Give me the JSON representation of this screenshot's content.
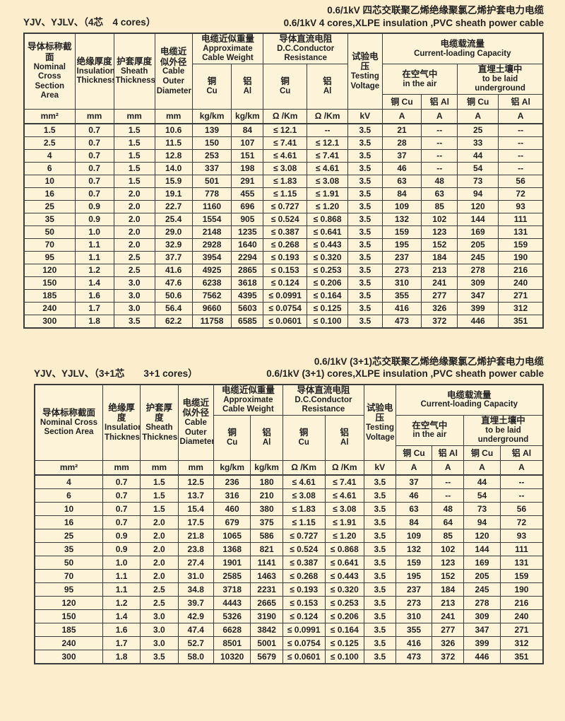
{
  "page": {
    "bg_color": "#fcedcd",
    "cell_bg": "#fdf3d9",
    "border_color": "#3b3b3b"
  },
  "header": {
    "section": {
      "cn": "导体标称截面",
      "en": "Nominal Cross Section Area",
      "unit": "mm²"
    },
    "insulation": {
      "cn": "绝缘厚度",
      "en": "Insulation Thickness",
      "unit": "mm"
    },
    "sheath": {
      "cn": "护套厚度",
      "en": "Sheath Thickness",
      "unit": "mm"
    },
    "diameter": {
      "cn": "电缆近似外径",
      "en": "Cable Outer Diameter",
      "unit": "mm"
    },
    "weight": {
      "cn": "电缆近似重量",
      "en": "Approximate Cable Weight",
      "cu_cn": "铜",
      "cu_en": "Cu",
      "al_cn": "铝",
      "al_en": "Al",
      "unit": "kg/km"
    },
    "resistance": {
      "cn": "导体直流电阻",
      "en": "D.C.Conductor Resistance",
      "cu_cn": "铜",
      "cu_en": "Cu",
      "al_cn": "铝",
      "al_en": "Al",
      "unit": "Ω /Km"
    },
    "testing": {
      "cn": "试验电压",
      "en": "Testing Voltage",
      "unit": "kV"
    },
    "capacity": {
      "cn": "电缆载流量",
      "en": "Current-loading Capacity",
      "air": {
        "cn": "在空气中",
        "en": "in the air"
      },
      "underground": {
        "cn": "直埋土壤中",
        "en": "to be laid underground"
      },
      "cu": "铜 Cu",
      "al": "铝 Al",
      "unit": "A"
    }
  },
  "tables": [
    {
      "title_cn": "0.6/1kV 四芯交联聚乙烯绝缘聚氯乙烯护套电力电缆",
      "title_en": "0.6/1kV 4 cores,XLPE insulation ,PVC sheath power cable",
      "model_label": "YJV、YJLV、（4芯　4 cores）",
      "rows": [
        [
          "1.5",
          "0.7",
          "1.5",
          "10.6",
          "139",
          "84",
          "≤ 12.1",
          "--",
          "3.5",
          "21",
          "--",
          "25",
          "--"
        ],
        [
          "2.5",
          "0.7",
          "1.5",
          "11.5",
          "150",
          "107",
          "≤ 7.41",
          "≤ 12.1",
          "3.5",
          "28",
          "--",
          "33",
          "--"
        ],
        [
          "4",
          "0.7",
          "1.5",
          "12.8",
          "253",
          "151",
          "≤ 4.61",
          "≤ 7.41",
          "3.5",
          "37",
          "--",
          "44",
          "--"
        ],
        [
          "6",
          "0.7",
          "1.5",
          "14.0",
          "337",
          "198",
          "≤ 3.08",
          "≤ 4.61",
          "3.5",
          "46",
          "--",
          "54",
          "--"
        ],
        [
          "10",
          "0.7",
          "1.5",
          "15.9",
          "501",
          "291",
          "≤ 1.83",
          "≤ 3.08",
          "3.5",
          "63",
          "48",
          "73",
          "56"
        ],
        [
          "16",
          "0.7",
          "2.0",
          "19.1",
          "778",
          "455",
          "≤ 1.15",
          "≤ 1.91",
          "3.5",
          "84",
          "63",
          "94",
          "72"
        ],
        [
          "25",
          "0.9",
          "2.0",
          "22.7",
          "1160",
          "696",
          "≤ 0.727",
          "≤ 1.20",
          "3.5",
          "109",
          "85",
          "120",
          "93"
        ],
        [
          "35",
          "0.9",
          "2.0",
          "25.4",
          "1554",
          "905",
          "≤ 0.524",
          "≤ 0.868",
          "3.5",
          "132",
          "102",
          "144",
          "111"
        ],
        [
          "50",
          "1.0",
          "2.0",
          "29.0",
          "2148",
          "1235",
          "≤ 0.387",
          "≤ 0.641",
          "3.5",
          "159",
          "123",
          "169",
          "131"
        ],
        [
          "70",
          "1.1",
          "2.0",
          "32.9",
          "2928",
          "1640",
          "≤ 0.268",
          "≤ 0.443",
          "3.5",
          "195",
          "152",
          "205",
          "159"
        ],
        [
          "95",
          "1.1",
          "2.5",
          "37.7",
          "3954",
          "2294",
          "≤ 0.193",
          "≤ 0.320",
          "3.5",
          "237",
          "184",
          "245",
          "190"
        ],
        [
          "120",
          "1.2",
          "2.5",
          "41.6",
          "4925",
          "2865",
          "≤ 0.153",
          "≤ 0.253",
          "3.5",
          "273",
          "213",
          "278",
          "216"
        ],
        [
          "150",
          "1.4",
          "3.0",
          "47.6",
          "6238",
          "3618",
          "≤ 0.124",
          "≤ 0.206",
          "3.5",
          "310",
          "241",
          "309",
          "240"
        ],
        [
          "185",
          "1.6",
          "3.0",
          "50.6",
          "7562",
          "4395",
          "≤ 0.0991",
          "≤ 0.164",
          "3.5",
          "355",
          "277",
          "347",
          "271"
        ],
        [
          "240",
          "1.7",
          "3.0",
          "56.4",
          "9660",
          "5603",
          "≤ 0.0754",
          "≤ 0.125",
          "3.5",
          "416",
          "326",
          "399",
          "312"
        ],
        [
          "300",
          "1.8",
          "3.5",
          "62.2",
          "11758",
          "6585",
          "≤ 0.0601",
          "≤ 0.100",
          "3.5",
          "473",
          "372",
          "446",
          "351"
        ]
      ]
    },
    {
      "title_cn": "0.6/1kV (3+1)芯交联聚乙烯绝缘聚氯乙烯护套电力电缆",
      "title_en": "0.6/1kV (3+1) cores,XLPE insulation ,PVC sheath power cable",
      "model_label": "YJV、YJLV、（3+1芯　　3+1 cores）",
      "rows": [
        [
          "4",
          "0.7",
          "1.5",
          "12.5",
          "236",
          "180",
          "≤ 4.61",
          "≤ 7.41",
          "3.5",
          "37",
          "--",
          "44",
          "--"
        ],
        [
          "6",
          "0.7",
          "1.5",
          "13.7",
          "316",
          "210",
          "≤ 3.08",
          "≤ 4.61",
          "3.5",
          "46",
          "--",
          "54",
          "--"
        ],
        [
          "10",
          "0.7",
          "1.5",
          "15.4",
          "460",
          "380",
          "≤ 1.83",
          "≤ 3.08",
          "3.5",
          "63",
          "48",
          "73",
          "56"
        ],
        [
          "16",
          "0.7",
          "2.0",
          "17.5",
          "679",
          "375",
          "≤ 1.15",
          "≤ 1.91",
          "3.5",
          "84",
          "64",
          "94",
          "72"
        ],
        [
          "25",
          "0.9",
          "2.0",
          "21.8",
          "1065",
          "586",
          "≤ 0.727",
          "≤ 1.20",
          "3.5",
          "109",
          "85",
          "120",
          "93"
        ],
        [
          "35",
          "0.9",
          "2.0",
          "23.8",
          "1368",
          "821",
          "≤ 0.524",
          "≤ 0.868",
          "3.5",
          "132",
          "102",
          "144",
          "111"
        ],
        [
          "50",
          "1.0",
          "2.0",
          "27.4",
          "1901",
          "1141",
          "≤ 0.387",
          "≤ 0.641",
          "3.5",
          "159",
          "123",
          "169",
          "131"
        ],
        [
          "70",
          "1.1",
          "2.0",
          "31.0",
          "2585",
          "1463",
          "≤ 0.268",
          "≤ 0.443",
          "3.5",
          "195",
          "152",
          "205",
          "159"
        ],
        [
          "95",
          "1.1",
          "2.5",
          "34.8",
          "3718",
          "2231",
          "≤ 0.193",
          "≤ 0.320",
          "3.5",
          "237",
          "184",
          "245",
          "190"
        ],
        [
          "120",
          "1.2",
          "2.5",
          "39.7",
          "4443",
          "2665",
          "≤ 0.153",
          "≤ 0.253",
          "3.5",
          "273",
          "213",
          "278",
          "216"
        ],
        [
          "150",
          "1.4",
          "3.0",
          "42.9",
          "5326",
          "3190",
          "≤ 0.124",
          "≤ 0.206",
          "3.5",
          "310",
          "241",
          "309",
          "240"
        ],
        [
          "185",
          "1.6",
          "3.0",
          "47.4",
          "6628",
          "3842",
          "≤ 0.0991",
          "≤ 0.164",
          "3.5",
          "355",
          "277",
          "347",
          "271"
        ],
        [
          "240",
          "1.7",
          "3.0",
          "52.7",
          "8501",
          "5001",
          "≤ 0.0754",
          "≤ 0.125",
          "3.5",
          "416",
          "326",
          "399",
          "312"
        ],
        [
          "300",
          "1.8",
          "3.5",
          "58.0",
          "10320",
          "5679",
          "≤ 0.0601",
          "≤ 0.100",
          "3.5",
          "473",
          "372",
          "446",
          "351"
        ]
      ]
    }
  ]
}
